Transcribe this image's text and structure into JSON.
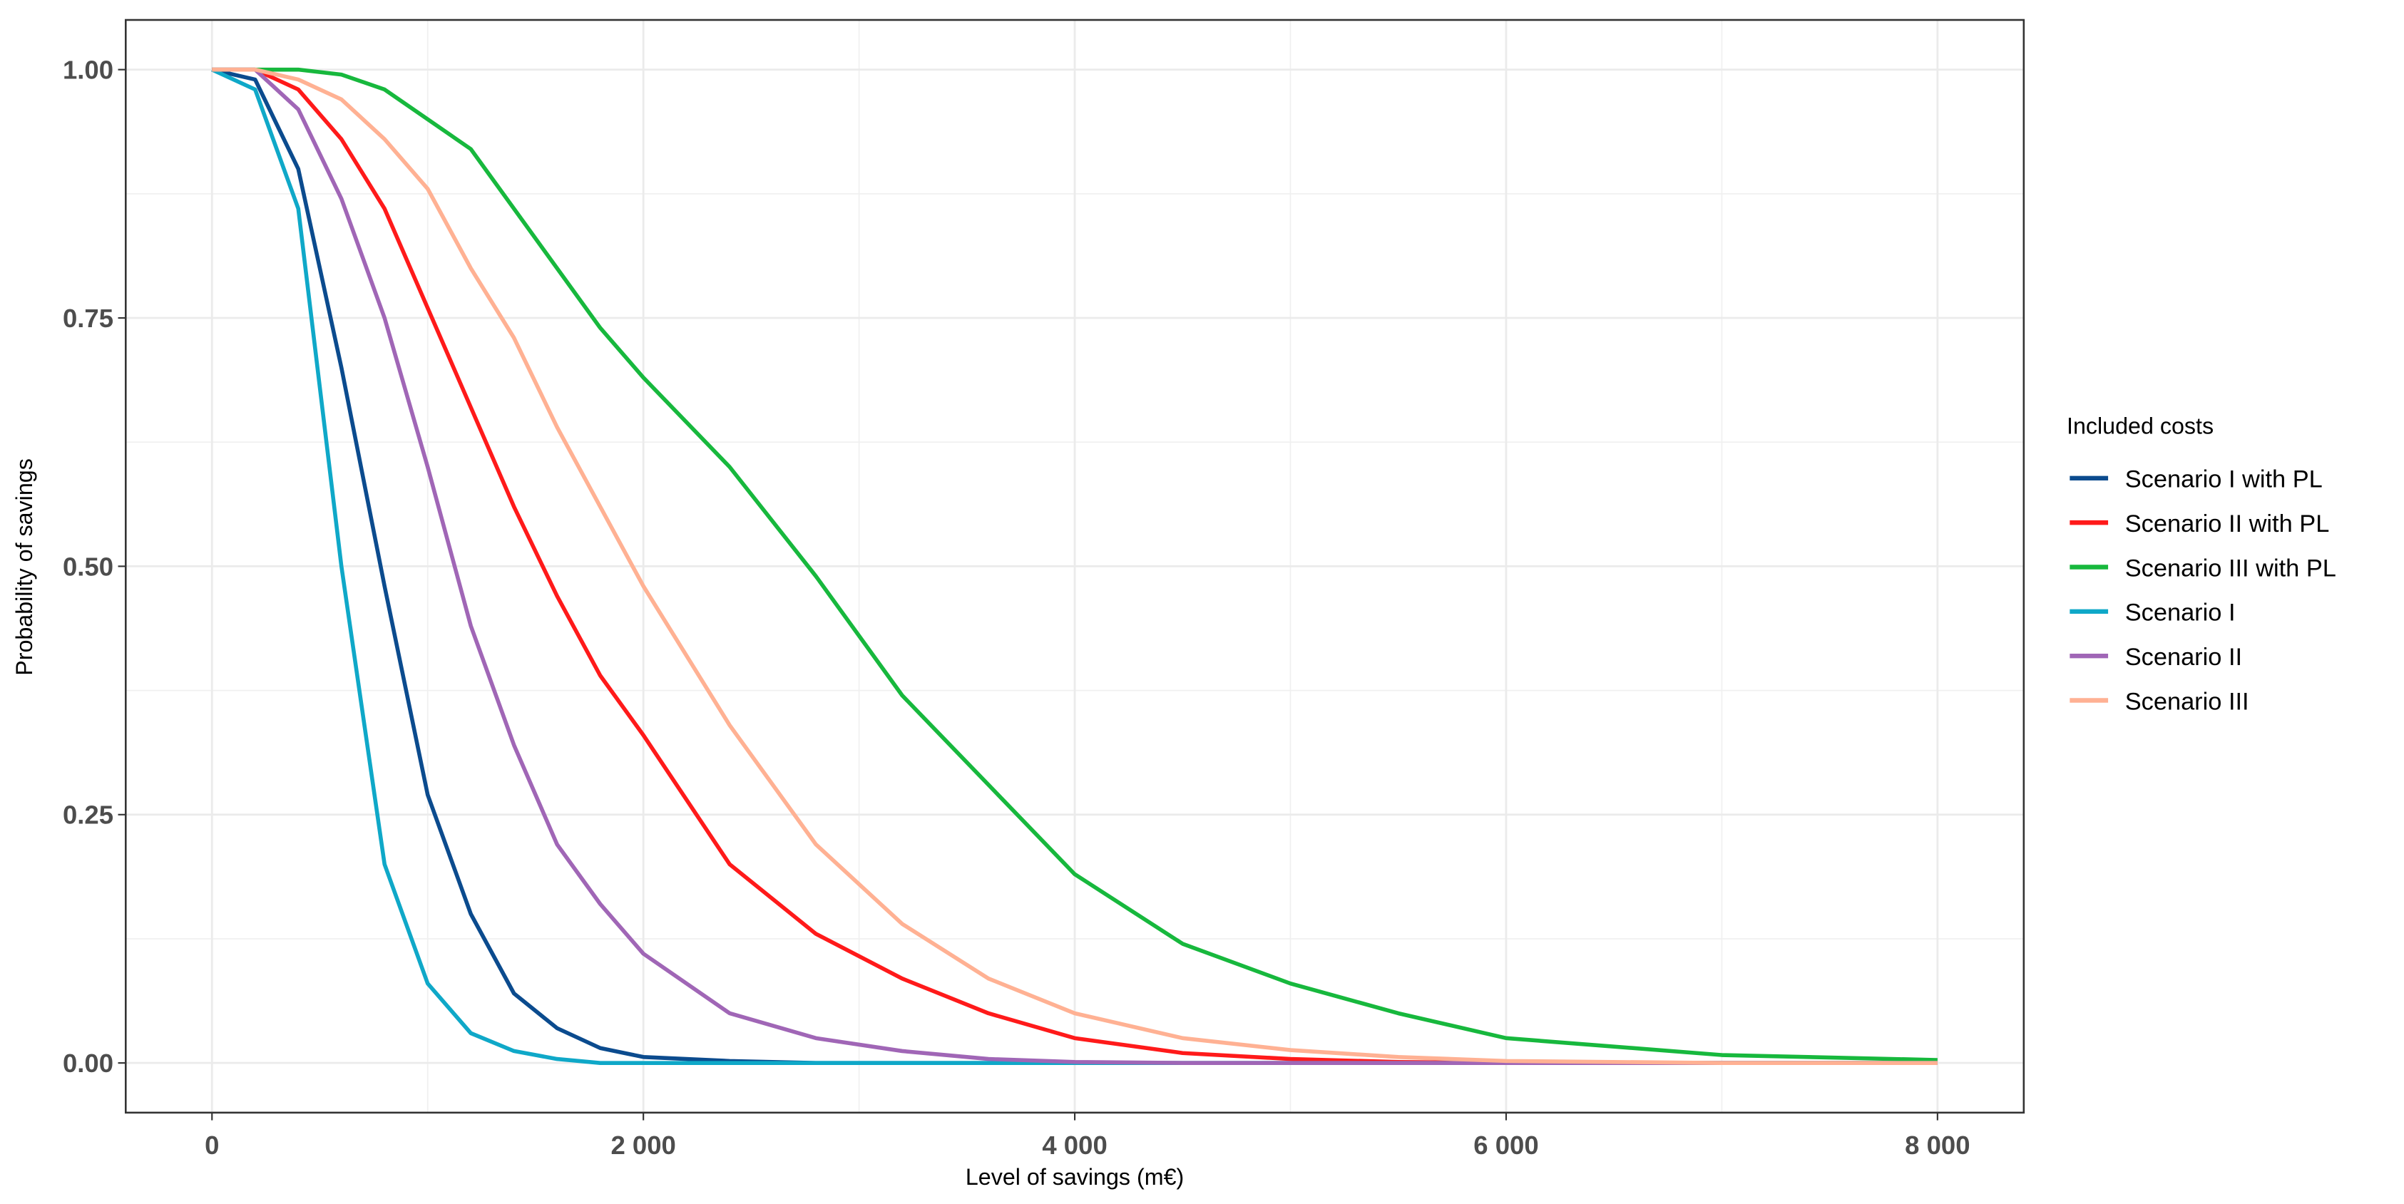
{
  "chart_data": {
    "type": "line",
    "x_label": "Level of savings (m€)",
    "y_label": "Probability of savings",
    "legend_title": "Included costs",
    "legend_position": "right",
    "grid": true,
    "xlim": [
      -400,
      8400
    ],
    "ylim": [
      -0.05,
      1.05
    ],
    "xticks": [
      0,
      {
        "value": 2000,
        "label": "2 000"
      },
      {
        "value": 4000,
        "label": "4 000"
      },
      {
        "value": 6000,
        "label": "6 000"
      },
      {
        "value": 8000,
        "label": "8 000"
      }
    ],
    "yticks": [
      {
        "value": 0,
        "label": "0.00"
      },
      {
        "value": 0.25,
        "label": "0.25"
      },
      {
        "value": 0.5,
        "label": "0.50"
      },
      {
        "value": 0.75,
        "label": "0.75"
      },
      {
        "value": 1,
        "label": "1.00"
      }
    ],
    "x": [
      0,
      200,
      400,
      600,
      800,
      1000,
      1200,
      1400,
      1600,
      1800,
      2000,
      2400,
      2800,
      3200,
      3600,
      4000,
      4500,
      5000,
      5500,
      6000,
      7000,
      8000
    ],
    "series": [
      {
        "name": "Scenario I with PL",
        "color": "#0b4b8e",
        "values": [
          1,
          0.99,
          0.9,
          0.7,
          0.48,
          0.27,
          0.15,
          0.07,
          0.035,
          0.015,
          0.006,
          0.002,
          0,
          0,
          0,
          0,
          0,
          0,
          0,
          0,
          0,
          0
        ]
      },
      {
        "name": "Scenario II with PL",
        "color": "#ff1a1a",
        "values": [
          1,
          1,
          0.98,
          0.93,
          0.86,
          0.76,
          0.66,
          0.56,
          0.47,
          0.39,
          0.33,
          0.2,
          0.13,
          0.085,
          0.05,
          0.025,
          0.01,
          0.004,
          0.001,
          0,
          0,
          0
        ]
      },
      {
        "name": "Scenario III with PL",
        "color": "#17b83d",
        "values": [
          1,
          1,
          1,
          0.995,
          0.98,
          0.95,
          0.92,
          0.86,
          0.8,
          0.74,
          0.69,
          0.6,
          0.49,
          0.37,
          0.28,
          0.19,
          0.12,
          0.08,
          0.05,
          0.025,
          0.008,
          0.003
        ]
      },
      {
        "name": "Scenario I",
        "color": "#0fa8c8",
        "values": [
          1,
          0.98,
          0.86,
          0.5,
          0.2,
          0.08,
          0.03,
          0.012,
          0.004,
          0,
          0,
          0,
          0,
          0,
          0,
          0,
          0,
          0,
          0,
          0,
          0,
          0
        ]
      },
      {
        "name": "Scenario II",
        "color": "#a066b6",
        "values": [
          1,
          1,
          0.96,
          0.87,
          0.75,
          0.6,
          0.44,
          0.32,
          0.22,
          0.16,
          0.11,
          0.05,
          0.025,
          0.012,
          0.004,
          0.001,
          0,
          0,
          0,
          0,
          0,
          0
        ]
      },
      {
        "name": "Scenario III",
        "color": "#ffb193",
        "values": [
          1,
          1,
          0.99,
          0.97,
          0.93,
          0.88,
          0.8,
          0.73,
          0.64,
          0.56,
          0.48,
          0.34,
          0.22,
          0.14,
          0.085,
          0.05,
          0.025,
          0.013,
          0.006,
          0.002,
          0,
          0
        ]
      }
    ]
  }
}
